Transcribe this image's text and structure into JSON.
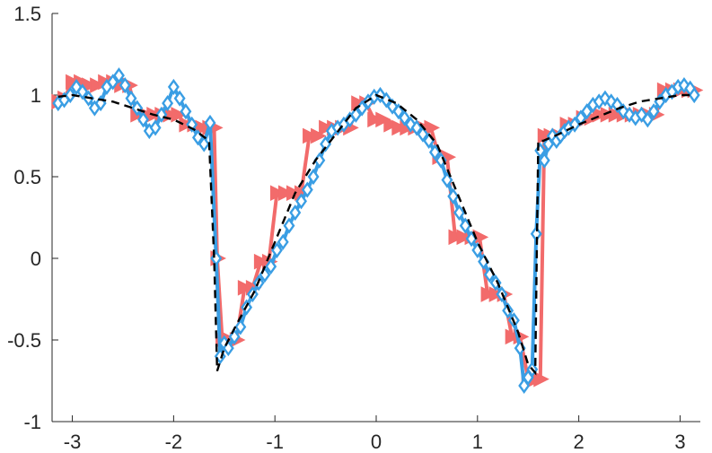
{
  "chart_data": {
    "type": "line",
    "xlim": [
      -3.2,
      3.2
    ],
    "ylim": [
      -1,
      1.5
    ],
    "xticks": [
      -3,
      -2,
      -1,
      0,
      1,
      2,
      3
    ],
    "xtick_labels": [
      "-3",
      "-2",
      "-1",
      "0",
      "1",
      "2",
      "3"
    ],
    "yticks": [
      -1,
      -0.5,
      0,
      0.5,
      1,
      1.5
    ],
    "ytick_labels": [
      "-1",
      "-0.5",
      "0",
      "0.5",
      "1",
      "1.5"
    ],
    "grid": false,
    "legend": "none",
    "series": [
      {
        "style": "dashed-line",
        "color": "#000000",
        "x": [
          -3.14,
          -3.0,
          -2.8,
          -2.6,
          -2.4,
          -2.2,
          -2.0,
          -1.8,
          -1.65,
          -1.6,
          -1.57,
          -1.5,
          -1.4,
          -1.2,
          -1.0,
          -0.8,
          -0.6,
          -0.4,
          -0.2,
          0.0,
          0.2,
          0.4,
          0.6,
          0.8,
          1.0,
          1.2,
          1.4,
          1.5,
          1.57,
          1.6,
          1.65,
          1.8,
          2.0,
          2.2,
          2.4,
          2.6,
          2.8,
          3.0,
          3.14
        ],
        "y": [
          0.99,
          1.0,
          0.98,
          0.96,
          0.92,
          0.88,
          0.85,
          0.79,
          0.72,
          0.0,
          -0.69,
          -0.55,
          -0.43,
          -0.2,
          0.1,
          0.4,
          0.6,
          0.76,
          0.92,
          1.0,
          0.95,
          0.85,
          0.7,
          0.4,
          0.1,
          -0.15,
          -0.45,
          -0.65,
          -0.7,
          0.72,
          0.72,
          0.76,
          0.82,
          0.87,
          0.92,
          0.96,
          0.98,
          1.0,
          1.0
        ]
      },
      {
        "style": "line-with-triangle-right-markers",
        "color": "#f26b6b",
        "x": [
          -3.14,
          -3.08,
          -3.0,
          -2.92,
          -2.84,
          -2.76,
          -2.68,
          -2.6,
          -2.52,
          -2.44,
          -2.36,
          -2.28,
          -2.2,
          -2.12,
          -2.04,
          -1.96,
          -1.88,
          -1.8,
          -1.72,
          -1.65,
          -1.6,
          -1.57,
          -1.52,
          -1.45,
          -1.38,
          -1.3,
          -1.22,
          -1.14,
          -1.06,
          -0.98,
          -0.9,
          -0.82,
          -0.74,
          -0.66,
          -0.58,
          -0.5,
          -0.42,
          -0.34,
          -0.26,
          -0.18,
          -0.1,
          -0.02,
          0.06,
          0.14,
          0.22,
          0.3,
          0.38,
          0.46,
          0.54,
          0.62,
          0.7,
          0.78,
          0.86,
          0.94,
          1.02,
          1.1,
          1.18,
          1.26,
          1.34,
          1.42,
          1.5,
          1.57,
          1.62,
          1.66,
          1.72,
          1.8,
          1.88,
          1.96,
          2.04,
          2.12,
          2.2,
          2.28,
          2.36,
          2.44,
          2.52,
          2.6,
          2.68,
          2.76,
          2.84,
          2.92,
          3.0,
          3.08,
          3.14
        ],
        "y": [
          0.96,
          0.98,
          1.08,
          1.08,
          1.06,
          1.06,
          1.08,
          1.08,
          1.06,
          1.06,
          0.88,
          0.88,
          0.88,
          0.88,
          0.88,
          0.88,
          0.82,
          0.82,
          0.8,
          0.8,
          0.8,
          0.0,
          -0.5,
          -0.5,
          -0.5,
          -0.18,
          -0.18,
          -0.02,
          -0.02,
          0.4,
          0.4,
          0.4,
          0.4,
          0.75,
          0.75,
          0.8,
          0.8,
          0.8,
          0.8,
          0.95,
          0.95,
          0.85,
          0.85,
          0.82,
          0.8,
          0.8,
          0.8,
          0.8,
          0.8,
          0.62,
          0.62,
          0.13,
          0.13,
          0.13,
          0.13,
          -0.22,
          -0.22,
          -0.22,
          -0.48,
          -0.48,
          -0.74,
          -0.74,
          -0.74,
          0.75,
          0.75,
          0.75,
          0.82,
          0.82,
          0.86,
          0.86,
          0.88,
          0.88,
          0.88,
          0.88,
          0.88,
          0.88,
          0.88,
          0.88,
          1.03,
          1.03,
          1.03,
          1.03,
          1.03
        ]
      },
      {
        "style": "line-with-diamond-markers",
        "color": "#3a9ee4",
        "x": [
          -3.14,
          -3.08,
          -3.02,
          -2.96,
          -2.9,
          -2.84,
          -2.78,
          -2.72,
          -2.66,
          -2.6,
          -2.54,
          -2.48,
          -2.42,
          -2.36,
          -2.3,
          -2.24,
          -2.18,
          -2.12,
          -2.06,
          -2.0,
          -1.94,
          -1.88,
          -1.82,
          -1.76,
          -1.7,
          -1.64,
          -1.58,
          -1.54,
          -1.5,
          -1.46,
          -1.4,
          -1.34,
          -1.28,
          -1.22,
          -1.16,
          -1.1,
          -1.04,
          -0.98,
          -0.92,
          -0.86,
          -0.8,
          -0.74,
          -0.68,
          -0.62,
          -0.56,
          -0.5,
          -0.44,
          -0.38,
          -0.32,
          -0.26,
          -0.2,
          -0.14,
          -0.08,
          -0.02,
          0.04,
          0.1,
          0.16,
          0.22,
          0.28,
          0.34,
          0.4,
          0.46,
          0.52,
          0.58,
          0.64,
          0.7,
          0.76,
          0.82,
          0.88,
          0.94,
          1.0,
          1.06,
          1.12,
          1.18,
          1.24,
          1.3,
          1.36,
          1.42,
          1.46,
          1.5,
          1.54,
          1.58,
          1.62,
          1.66,
          1.7,
          1.74,
          1.78,
          1.82,
          1.86,
          1.9,
          1.96,
          2.02,
          2.08,
          2.14,
          2.2,
          2.26,
          2.32,
          2.38,
          2.44,
          2.5,
          2.56,
          2.62,
          2.68,
          2.74,
          2.8,
          2.86,
          2.92,
          2.98,
          3.04,
          3.1,
          3.14
        ],
        "y": [
          0.95,
          0.97,
          1.0,
          1.05,
          1.02,
          0.98,
          0.92,
          0.95,
          1.05,
          1.08,
          1.12,
          1.06,
          0.98,
          0.92,
          0.85,
          0.78,
          0.8,
          0.88,
          0.95,
          1.05,
          0.98,
          0.9,
          0.82,
          0.74,
          0.7,
          0.83,
          0.0,
          -0.6,
          -0.52,
          -0.55,
          -0.48,
          -0.42,
          -0.3,
          -0.22,
          -0.15,
          -0.1,
          -0.05,
          0.05,
          0.1,
          0.2,
          0.28,
          0.35,
          0.42,
          0.5,
          0.6,
          0.7,
          0.78,
          0.8,
          0.82,
          0.85,
          0.88,
          0.92,
          0.96,
          0.99,
          1.0,
          0.97,
          0.93,
          0.9,
          0.86,
          0.82,
          0.8,
          0.76,
          0.72,
          0.65,
          0.6,
          0.48,
          0.38,
          0.28,
          0.2,
          0.12,
          0.05,
          -0.02,
          -0.1,
          -0.15,
          -0.22,
          -0.32,
          -0.38,
          -0.55,
          -0.78,
          -0.73,
          -0.68,
          0.15,
          0.66,
          0.6,
          0.7,
          0.75,
          0.72,
          0.75,
          0.78,
          0.8,
          0.82,
          0.86,
          0.9,
          0.94,
          0.96,
          0.98,
          0.96,
          0.94,
          0.9,
          0.88,
          0.86,
          0.88,
          0.85,
          0.9,
          0.96,
          1.0,
          1.02,
          1.05,
          1.06,
          1.04,
          1.0
        ]
      }
    ]
  }
}
